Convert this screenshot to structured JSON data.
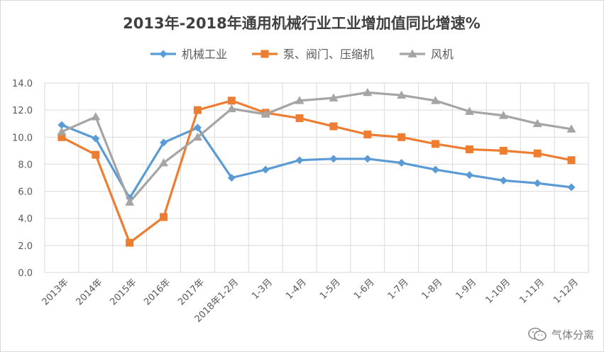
{
  "chart_data": {
    "type": "line",
    "title": "2013年-2018年通用机械行业工业增加值同比增速%",
    "categories": [
      "2013年",
      "2014年",
      "2015年",
      "2016年",
      "2017年",
      "2018年1-2月",
      "1-3月",
      "1-4月",
      "1-5月",
      "1-6月",
      "1-7月",
      "1-8月",
      "1-9月",
      "1-10月",
      "1-11月",
      "1-12月"
    ],
    "ylim": [
      0,
      14
    ],
    "yticks": [
      "0.0",
      "2.0",
      "4.0",
      "6.0",
      "8.0",
      "10.0",
      "12.0",
      "14.0"
    ],
    "grid": "horizontal",
    "legend_position": "top",
    "series": [
      {
        "name": "机械工业",
        "color": "#5B9BD5",
        "marker": "diamond",
        "values": [
          10.9,
          9.9,
          5.5,
          9.6,
          10.7,
          7.0,
          7.6,
          8.3,
          8.4,
          8.4,
          8.1,
          7.6,
          7.2,
          6.8,
          6.6,
          6.3
        ]
      },
      {
        "name": "泵、阀门、压缩机",
        "color": "#ED7D31",
        "marker": "square",
        "values": [
          10.0,
          8.7,
          2.2,
          4.1,
          12.0,
          12.7,
          11.8,
          11.4,
          10.8,
          10.2,
          10.0,
          9.5,
          9.1,
          9.0,
          8.8,
          8.3
        ]
      },
      {
        "name": "风机",
        "color": "#A5A5A5",
        "marker": "triangle",
        "values": [
          10.4,
          11.5,
          5.2,
          8.1,
          10.0,
          12.1,
          11.7,
          12.7,
          12.9,
          13.3,
          13.1,
          12.7,
          11.9,
          11.6,
          11.0,
          10.6
        ]
      }
    ]
  },
  "watermark": {
    "text": "气体分离",
    "icon": "wechat-icon"
  }
}
